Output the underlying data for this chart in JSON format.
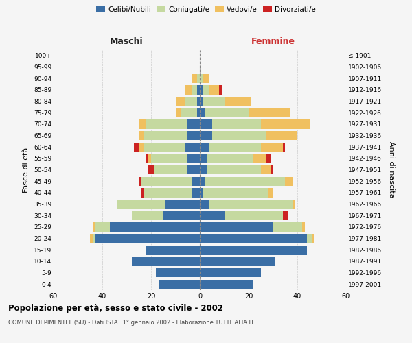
{
  "age_groups": [
    "0-4",
    "5-9",
    "10-14",
    "15-19",
    "20-24",
    "25-29",
    "30-34",
    "35-39",
    "40-44",
    "45-49",
    "50-54",
    "55-59",
    "60-64",
    "65-69",
    "70-74",
    "75-79",
    "80-84",
    "85-89",
    "90-94",
    "95-99",
    "100+"
  ],
  "birth_years": [
    "1997-2001",
    "1992-1996",
    "1987-1991",
    "1982-1986",
    "1977-1981",
    "1972-1976",
    "1967-1971",
    "1962-1966",
    "1957-1961",
    "1952-1956",
    "1947-1951",
    "1942-1946",
    "1937-1941",
    "1932-1936",
    "1927-1931",
    "1922-1926",
    "1917-1921",
    "1912-1916",
    "1907-1911",
    "1902-1906",
    "≤ 1901"
  ],
  "males": {
    "celibi": [
      17,
      18,
      28,
      22,
      43,
      37,
      15,
      14,
      3,
      3,
      5,
      5,
      6,
      5,
      5,
      1,
      1,
      1,
      0,
      0,
      0
    ],
    "coniugati": [
      0,
      0,
      0,
      0,
      1,
      6,
      13,
      20,
      20,
      21,
      14,
      15,
      17,
      18,
      17,
      7,
      5,
      2,
      1,
      0,
      0
    ],
    "vedovi": [
      0,
      0,
      0,
      0,
      1,
      1,
      0,
      0,
      0,
      0,
      0,
      1,
      2,
      2,
      3,
      2,
      4,
      3,
      2,
      0,
      0
    ],
    "divorziati": [
      0,
      0,
      0,
      0,
      0,
      0,
      0,
      0,
      1,
      1,
      2,
      1,
      2,
      0,
      0,
      0,
      0,
      0,
      0,
      0,
      0
    ]
  },
  "females": {
    "nubili": [
      22,
      25,
      31,
      44,
      44,
      30,
      10,
      4,
      1,
      2,
      3,
      3,
      4,
      5,
      5,
      2,
      1,
      1,
      0,
      0,
      0
    ],
    "coniugate": [
      0,
      0,
      0,
      0,
      2,
      12,
      24,
      34,
      27,
      33,
      22,
      19,
      21,
      22,
      20,
      18,
      9,
      3,
      1,
      0,
      0
    ],
    "vedove": [
      0,
      0,
      0,
      0,
      1,
      1,
      0,
      1,
      2,
      3,
      4,
      5,
      9,
      13,
      20,
      17,
      11,
      4,
      3,
      0,
      0
    ],
    "divorziate": [
      0,
      0,
      0,
      0,
      0,
      0,
      2,
      0,
      0,
      0,
      1,
      2,
      1,
      0,
      0,
      0,
      0,
      1,
      0,
      0,
      0
    ]
  },
  "colors": {
    "celibi": "#3a6ea5",
    "coniugati": "#c5d9a0",
    "vedovi": "#f0c060",
    "divorziati": "#cc2222"
  },
  "xlim": 60,
  "title": "Popolazione per età, sesso e stato civile - 2002",
  "subtitle": "COMUNE DI PIMENTEL (SU) - Dati ISTAT 1° gennaio 2002 - Elaborazione TUTTITALIA.IT",
  "ylabel_left": "Fasce di età",
  "ylabel_right": "Anni di nascita",
  "label_maschi": "Maschi",
  "label_femmine": "Femmine",
  "bg_color": "#f5f5f5",
  "grid_color": "#cccccc",
  "legend_labels": [
    "Celibi/Nubili",
    "Coniugati/e",
    "Vedovi/e",
    "Divorziati/e"
  ]
}
